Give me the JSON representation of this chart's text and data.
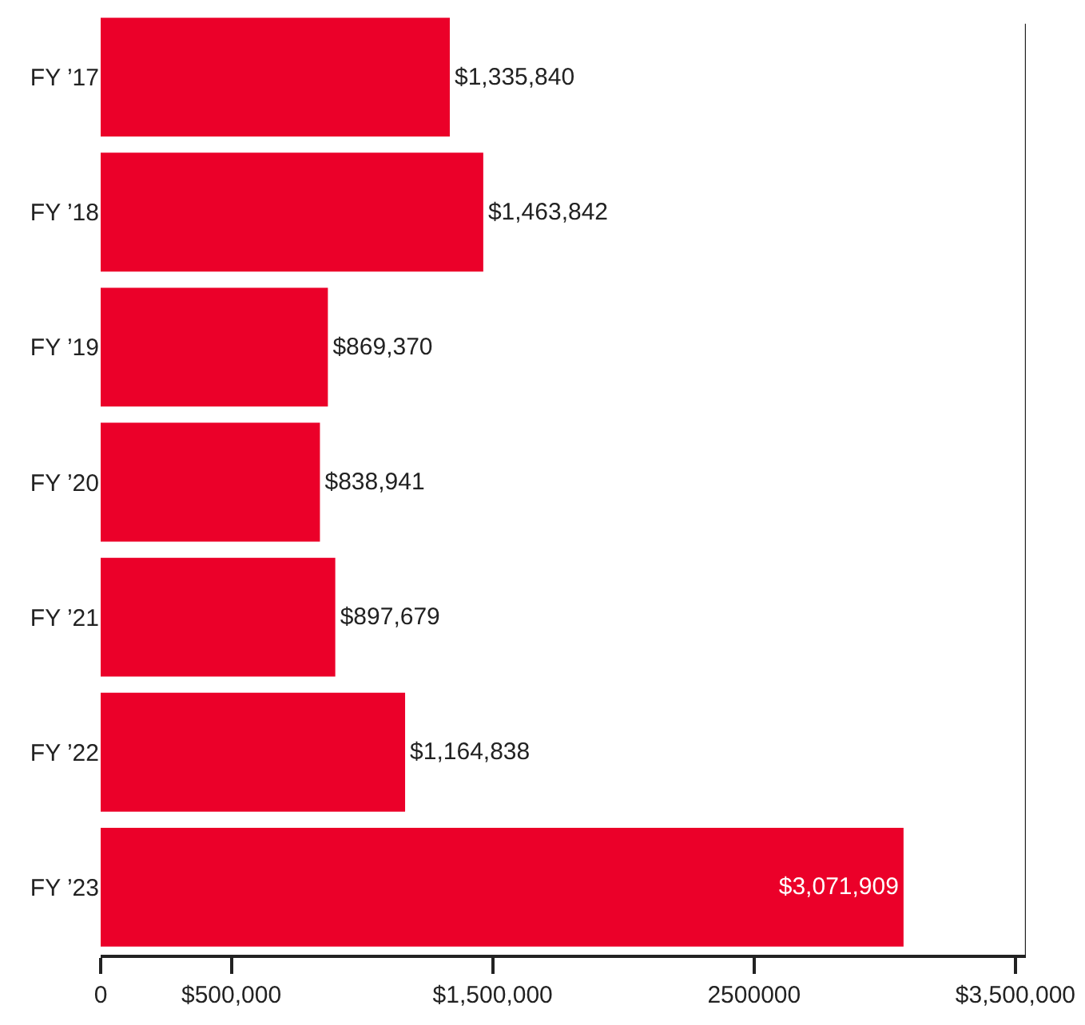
{
  "chart_data": {
    "type": "bar",
    "orientation": "horizontal",
    "categories": [
      "FY ’17",
      "FY ’18",
      "FY ’19",
      "FY ’20",
      "FY ’21",
      "FY ’22",
      "FY ’23"
    ],
    "values": [
      1335840,
      1463842,
      869370,
      838941,
      897679,
      1164838,
      3071909
    ],
    "color": "#eb0029",
    "value_labels": [
      "$1,335,840",
      "$1,463,842",
      "$869,370",
      "$838,941",
      "$897,679",
      "$1,164,838",
      "$3,071,909"
    ],
    "xlim": [
      0,
      3540000
    ],
    "xticks": [
      0,
      {
        "value": 500000,
        "label": "$500,000"
      },
      {
        "value": 1500000,
        "label": "$1,500,000"
      },
      2500000,
      {
        "value": 3500000,
        "label": "$3,500,000"
      }
    ],
    "line_style": "solid"
  }
}
